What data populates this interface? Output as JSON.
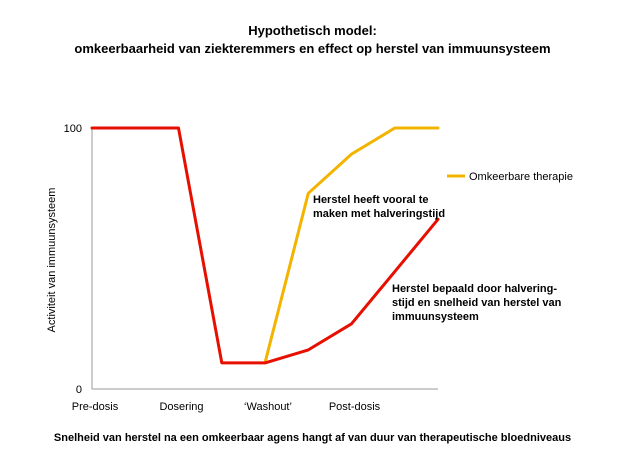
{
  "title_line1": "Hypothetisch model:",
  "title_line2": "omkeerbaarheid van ziekteremmers en effect op herstel van immuunsysteem",
  "caption": "Snelheid van herstel na een omkeerbaar agens hangt af van duur van therapeutische bloedniveaus",
  "chart_data": {
    "type": "line",
    "ylabel": "Activiteit van immuunsysteem",
    "yticks": [
      "100",
      "0"
    ],
    "ylim": [
      0,
      100
    ],
    "xlim": [
      0,
      8
    ],
    "x_tick_labels": [
      {
        "x": 0,
        "label": "Pre-dosis"
      },
      {
        "x": 2,
        "label": "Dosering"
      },
      {
        "x": 4,
        "label": "‘Washout’"
      },
      {
        "x": 6,
        "label": "Post-dosis"
      }
    ],
    "legend_position": "right",
    "series": [
      {
        "name": "",
        "color": "#e60f00",
        "x": [
          0,
          2,
          3,
          4,
          5,
          6,
          7,
          8
        ],
        "y": [
          100,
          100,
          10,
          10,
          15,
          25,
          45,
          65
        ]
      },
      {
        "name": "Omkeerbare therapie",
        "color": "#f2b400",
        "x": [
          4,
          5,
          6,
          7,
          8
        ],
        "y": [
          10,
          75,
          90,
          100,
          100
        ]
      }
    ],
    "annotations": [
      {
        "lines": [
          "Herstel heeft vooral te",
          "maken met halveringstijd"
        ]
      },
      {
        "lines": [
          "Herstel bepaald door halvering-",
          "stijd en snelheid van herstel van",
          "immuunsysteem"
        ]
      }
    ]
  }
}
